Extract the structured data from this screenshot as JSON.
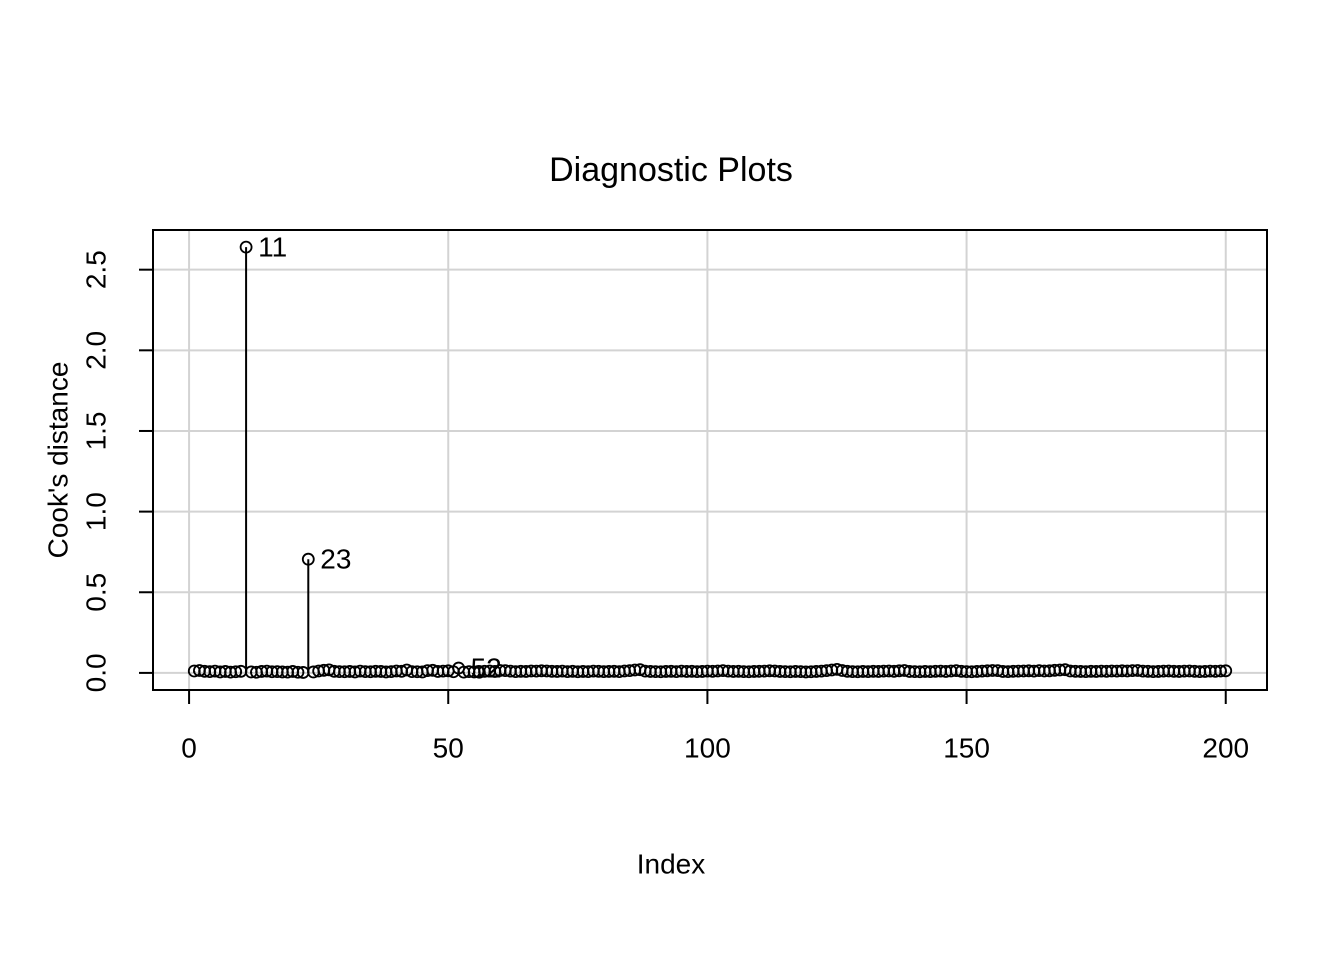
{
  "chart_data": {
    "type": "needle",
    "title": "Diagnostic Plots",
    "x_label": "Index",
    "y_label": "Cook's distance",
    "x": [
      1,
      2,
      3,
      4,
      5,
      6,
      7,
      8,
      9,
      10,
      11,
      12,
      13,
      14,
      15,
      16,
      17,
      18,
      19,
      20,
      21,
      22,
      23,
      24,
      25,
      26,
      27,
      28,
      29,
      30,
      31,
      32,
      33,
      34,
      35,
      36,
      37,
      38,
      39,
      40,
      41,
      42,
      43,
      44,
      45,
      46,
      47,
      48,
      49,
      50,
      51,
      52,
      53,
      54,
      55,
      56,
      57,
      58,
      59,
      60,
      61,
      62,
      63,
      64,
      65,
      66,
      67,
      68,
      69,
      70,
      71,
      72,
      73,
      74,
      75,
      76,
      77,
      78,
      79,
      80,
      81,
      82,
      83,
      84,
      85,
      86,
      87,
      88,
      89,
      90,
      91,
      92,
      93,
      94,
      95,
      96,
      97,
      98,
      99,
      100,
      101,
      102,
      103,
      104,
      105,
      106,
      107,
      108,
      109,
      110,
      111,
      112,
      113,
      114,
      115,
      116,
      117,
      118,
      119,
      120,
      121,
      122,
      123,
      124,
      125,
      126,
      127,
      128,
      129,
      130,
      131,
      132,
      133,
      134,
      135,
      136,
      137,
      138,
      139,
      140,
      141,
      142,
      143,
      144,
      145,
      146,
      147,
      148,
      149,
      150,
      151,
      152,
      153,
      154,
      155,
      156,
      157,
      158,
      159,
      160,
      161,
      162,
      163,
      164,
      165,
      166,
      167,
      168,
      169,
      170,
      171,
      172,
      173,
      174,
      175,
      176,
      177,
      178,
      179,
      180,
      181,
      182,
      183,
      184,
      185,
      186,
      187,
      188,
      189,
      190,
      191,
      192,
      193,
      194,
      195,
      196,
      197,
      198,
      199,
      200
    ],
    "values": [
      0.012,
      0.015,
      0.01,
      0.008,
      0.011,
      0.006,
      0.009,
      0.005,
      0.007,
      0.01,
      2.64,
      0.006,
      0.004,
      0.009,
      0.011,
      0.007,
      0.008,
      0.006,
      0.005,
      0.009,
      0.004,
      0.003,
      0.705,
      0.006,
      0.012,
      0.016,
      0.019,
      0.01,
      0.008,
      0.007,
      0.009,
      0.006,
      0.011,
      0.008,
      0.007,
      0.01,
      0.009,
      0.006,
      0.008,
      0.012,
      0.01,
      0.018,
      0.008,
      0.007,
      0.006,
      0.014,
      0.016,
      0.009,
      0.011,
      0.013,
      0.007,
      0.03,
      0.005,
      0.008,
      0.006,
      0.004,
      0.01,
      0.012,
      0.009,
      0.015,
      0.014,
      0.011,
      0.008,
      0.01,
      0.009,
      0.012,
      0.011,
      0.013,
      0.012,
      0.01,
      0.009,
      0.011,
      0.008,
      0.01,
      0.007,
      0.009,
      0.008,
      0.011,
      0.01,
      0.008,
      0.009,
      0.01,
      0.008,
      0.012,
      0.014,
      0.018,
      0.02,
      0.011,
      0.009,
      0.008,
      0.007,
      0.009,
      0.01,
      0.008,
      0.011,
      0.009,
      0.01,
      0.008,
      0.009,
      0.011,
      0.01,
      0.012,
      0.014,
      0.011,
      0.009,
      0.01,
      0.008,
      0.007,
      0.009,
      0.01,
      0.011,
      0.013,
      0.012,
      0.009,
      0.008,
      0.007,
      0.009,
      0.008,
      0.006,
      0.007,
      0.009,
      0.011,
      0.014,
      0.018,
      0.022,
      0.015,
      0.01,
      0.008,
      0.007,
      0.009,
      0.008,
      0.01,
      0.009,
      0.011,
      0.012,
      0.01,
      0.013,
      0.015,
      0.009,
      0.008,
      0.007,
      0.009,
      0.008,
      0.01,
      0.011,
      0.009,
      0.012,
      0.014,
      0.01,
      0.008,
      0.007,
      0.009,
      0.011,
      0.013,
      0.015,
      0.014,
      0.009,
      0.008,
      0.01,
      0.011,
      0.012,
      0.013,
      0.011,
      0.014,
      0.012,
      0.013,
      0.016,
      0.018,
      0.02,
      0.012,
      0.01,
      0.009,
      0.008,
      0.01,
      0.009,
      0.011,
      0.01,
      0.012,
      0.011,
      0.013,
      0.012,
      0.014,
      0.015,
      0.011,
      0.01,
      0.008,
      0.009,
      0.011,
      0.012,
      0.01,
      0.009,
      0.011,
      0.012,
      0.01,
      0.008,
      0.009,
      0.011,
      0.01,
      0.012,
      0.013
    ],
    "point_labels": [
      {
        "index": 11,
        "label": "11"
      },
      {
        "index": 23,
        "label": "23"
      },
      {
        "index": 52,
        "label": "52"
      }
    ],
    "xlim": [
      -6.96,
      207.96
    ],
    "xticks": [
      0,
      50,
      100,
      150,
      200
    ],
    "ylim": [
      -0.106,
      2.746
    ],
    "yticks": [
      {
        "value": 0,
        "label": "0.0"
      },
      {
        "value": 0.5,
        "label": "0.5"
      },
      {
        "value": 1,
        "label": "1.0"
      },
      {
        "value": 1.5,
        "label": "1.5"
      },
      {
        "value": 2,
        "label": "2.0"
      },
      {
        "value": 2.5,
        "label": "2.5"
      }
    ],
    "grid": true,
    "color": "#000000"
  }
}
